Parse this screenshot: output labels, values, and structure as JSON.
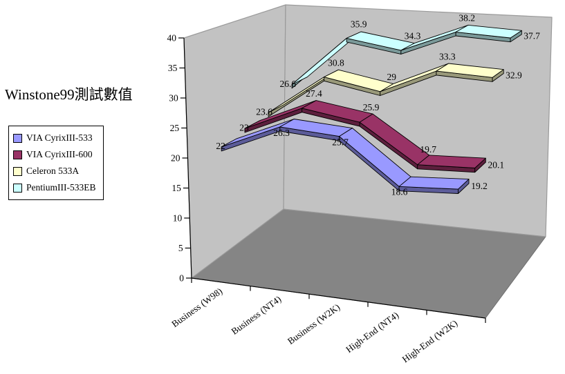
{
  "chart_data": {
    "type": "line",
    "variant": "3d-ribbon",
    "title": "Winstone99測試數值",
    "categories": [
      "Business (W98)",
      "Business (NT4)",
      "Business (W2K)",
      "High-End (NT4)",
      "High-End (W2K)"
    ],
    "series": [
      {
        "name": "VIA CyrixIII-533",
        "values": [
          22,
          26.3,
          25.7,
          18.6,
          19.2
        ],
        "color": "#9999FF",
        "side_color": "#5C5C99"
      },
      {
        "name": "VIA CyrixIII-600",
        "values": [
          23,
          27.4,
          25.9,
          19.7,
          20.1
        ],
        "color": "#993366",
        "side_color": "#5C1F3D"
      },
      {
        "name": "Celeron 533A",
        "values": [
          23.6,
          30.8,
          29,
          33.3,
          32.9
        ],
        "color": "#FFFFCC",
        "side_color": "#99997A"
      },
      {
        "name": "PentiumIII-533EB",
        "values": [
          26.6,
          35.9,
          34.3,
          38.2,
          37.7
        ],
        "color": "#CCFFFF",
        "side_color": "#7A9999"
      }
    ],
    "ylim": [
      0,
      40
    ],
    "ytick_step": 5,
    "yticks": [
      0,
      5,
      10,
      15,
      20,
      25,
      30,
      35,
      40
    ],
    "data_labels_shown": true,
    "legend_position": "left",
    "grid": false,
    "colors": {
      "background": "#FFFFFF",
      "wall": "#C2C2C2",
      "floor": "#858585",
      "wall_edge": "#9A9A9A",
      "axis": "#000000",
      "text": "#000000"
    }
  }
}
